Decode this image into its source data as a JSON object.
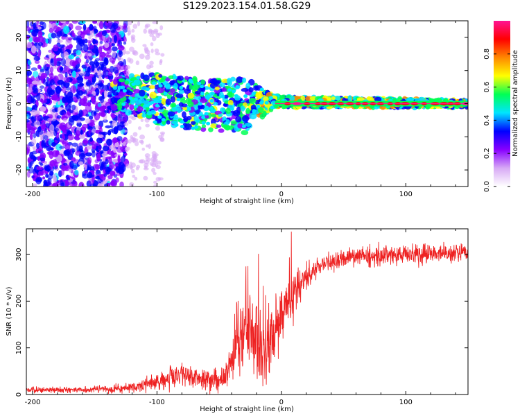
{
  "figure_title": "S129.2023.154.01.58.G29",
  "chart_data": [
    {
      "type": "heatmap",
      "title": "",
      "xlabel": "Height of straight line (km)",
      "ylabel": "Frequency (Hz)",
      "xlim": [
        -205,
        150
      ],
      "ylim": [
        -25,
        25
      ],
      "xticks": [
        -200,
        -100,
        0,
        100
      ],
      "yticks": [
        -20,
        -10,
        0,
        10,
        20
      ],
      "colorbar": {
        "label": "Normalized spectral amplitude",
        "range": [
          0,
          1
        ],
        "ticks": [
          0.0,
          0.2,
          0.4,
          0.6,
          0.8
        ],
        "colormap": [
          "#ffffff",
          "#d7a9f5",
          "#8800ff",
          "#0000ff",
          "#00e5ff",
          "#00ff55",
          "#ffff00",
          "#ff8800",
          "#ff0000",
          "#ff1493"
        ]
      },
      "ridge": [
        {
          "x": -130,
          "f_low": -2,
          "f_high": 8
        },
        {
          "x": -100,
          "f_low": -6,
          "f_high": 9
        },
        {
          "x": -60,
          "f_low": -8,
          "f_high": 7
        },
        {
          "x": -30,
          "f_low": -9,
          "f_high": 8
        },
        {
          "x": -10,
          "f_low": -2,
          "f_high": 3
        },
        {
          "x": 0,
          "f_low": -1,
          "f_high": 2
        },
        {
          "x": 150,
          "f_low": -1,
          "f_high": 1
        }
      ],
      "peak_frequency_hz": 0
    },
    {
      "type": "line",
      "title": "",
      "xlabel": "Height of straight line (km)",
      "ylabel": "SNR (10 * v/v)",
      "xlim": [
        -205,
        150
      ],
      "ylim": [
        0,
        355
      ],
      "xticks": [
        -200,
        -100,
        0,
        100
      ],
      "yticks": [
        0,
        100,
        200,
        300
      ],
      "line_color": "#ee2222",
      "trend": {
        "x": [
          -205,
          -150,
          -120,
          -100,
          -80,
          -60,
          -45,
          -35,
          -25,
          -15,
          -5,
          5,
          15,
          25,
          40,
          60,
          100,
          150
        ],
        "y": [
          10,
          10,
          15,
          25,
          45,
          25,
          40,
          100,
          140,
          80,
          150,
          200,
          230,
          265,
          285,
          295,
          300,
          305
        ]
      },
      "noise_amplitude": {
        "x": [
          -205,
          -130,
          -90,
          -60,
          -45,
          -35,
          -20,
          0,
          20,
          40,
          150
        ],
        "y": [
          6,
          8,
          22,
          25,
          25,
          70,
          90,
          60,
          30,
          22,
          20
        ]
      }
    }
  ]
}
